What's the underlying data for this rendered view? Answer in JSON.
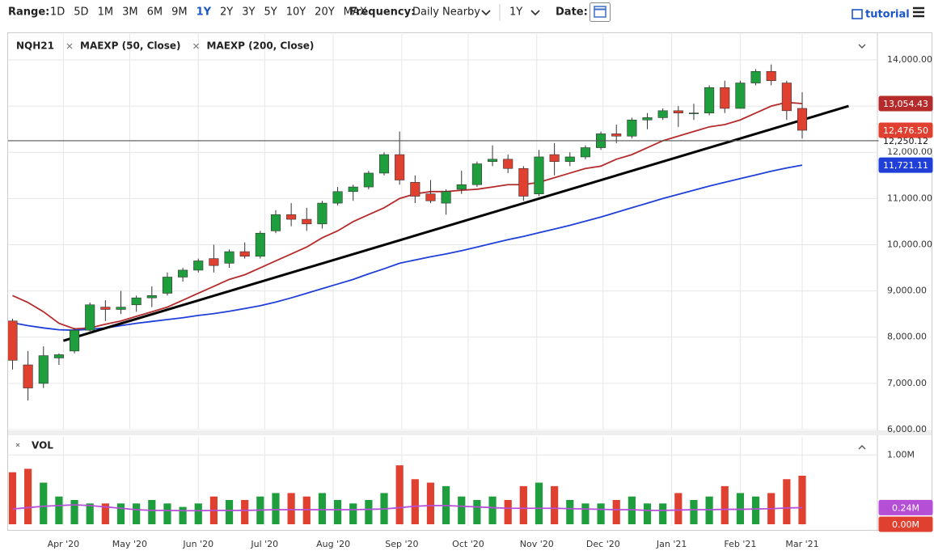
{
  "toolbar": {
    "range_label": "Range:",
    "ranges": [
      "1D",
      "5D",
      "1M",
      "3M",
      "6M",
      "9M",
      "1Y",
      "2Y",
      "3Y",
      "5Y",
      "10Y",
      "20Y",
      "MAX"
    ],
    "active_range": "1Y",
    "frequency_label": "Frequency:",
    "frequency": "Daily Nearby",
    "period": "1Y",
    "date_label": "Date:",
    "tutorial": "tutorial"
  },
  "chart_data": {
    "type": "candlestick",
    "symbol": "NQH21",
    "x": [
      0,
      7,
      14,
      21,
      28,
      35,
      42,
      49,
      56,
      63,
      70,
      77,
      84,
      91,
      98,
      105,
      112,
      119,
      126,
      133,
      140,
      147,
      154,
      161,
      168,
      175,
      182,
      189,
      196,
      203,
      210,
      217,
      224,
      231,
      238,
      245,
      252,
      259,
      266,
      273,
      280,
      287,
      294,
      301,
      308,
      315,
      322,
      329,
      336,
      343,
      350,
      357
    ],
    "open": [
      8350,
      7400,
      7000,
      7550,
      7700,
      8150,
      8650,
      8600,
      8700,
      8850,
      8950,
      9300,
      9450,
      9700,
      9600,
      9850,
      9750,
      10300,
      10650,
      10550,
      10450,
      10900,
      11150,
      11250,
      11550,
      11950,
      11350,
      11100,
      10900,
      11200,
      11300,
      11800,
      11850,
      11650,
      11100,
      11950,
      11800,
      11900,
      12100,
      12400,
      12350,
      12700,
      12750,
      12900,
      12850,
      12850,
      13400,
      12950,
      13500,
      13750,
      13500,
      12950
    ],
    "high": [
      8400,
      7700,
      7800,
      7650,
      8200,
      8750,
      8800,
      9000,
      8900,
      9100,
      9400,
      9500,
      9700,
      10000,
      9900,
      10050,
      10300,
      10750,
      10900,
      10800,
      10950,
      11250,
      11300,
      11600,
      12000,
      12450,
      11500,
      11400,
      11200,
      11600,
      11800,
      12150,
      11950,
      11700,
      12050,
      12200,
      12000,
      12150,
      12450,
      12600,
      12750,
      12850,
      12950,
      13000,
      13050,
      13450,
      13550,
      13550,
      13800,
      13900,
      13550,
      13300
    ],
    "low": [
      7300,
      6630,
      6900,
      7400,
      7650,
      8100,
      8350,
      8500,
      8550,
      8650,
      8900,
      9200,
      9400,
      9400,
      9500,
      9700,
      9700,
      10250,
      10400,
      10300,
      10350,
      10850,
      10950,
      11200,
      11500,
      11300,
      10900,
      10900,
      10650,
      11100,
      11250,
      11700,
      11550,
      10950,
      11050,
      11500,
      11700,
      11850,
      12050,
      12200,
      12300,
      12500,
      12700,
      12550,
      12700,
      12800,
      12850,
      12950,
      13450,
      13450,
      12700,
      12300
    ],
    "close": [
      7500,
      6900,
      7600,
      7620,
      8150,
      8700,
      8600,
      8650,
      8850,
      8900,
      9300,
      9450,
      9650,
      9550,
      9850,
      9750,
      10250,
      10650,
      10550,
      10450,
      10900,
      11150,
      11250,
      11550,
      11950,
      11400,
      11050,
      10950,
      11150,
      11300,
      11750,
      11850,
      11650,
      11050,
      11900,
      11800,
      11900,
      12100,
      12400,
      12350,
      12700,
      12750,
      12900,
      12850,
      12850,
      13400,
      12950,
      13500,
      13750,
      13550,
      12900,
      12476.5
    ],
    "up_color": "#1f9e3e",
    "down_color": "#e0402f",
    "last_price": {
      "value": 12476.5,
      "label": "12,476.50"
    },
    "overlays": [
      {
        "name": "MAEXP (50, Close)",
        "color": "#b52b2b",
        "end_label": {
          "value": 13054.43,
          "label": "13,054.43"
        },
        "values": [
          8900,
          8750,
          8550,
          8300,
          8180,
          8200,
          8280,
          8350,
          8450,
          8550,
          8650,
          8800,
          8950,
          9100,
          9250,
          9350,
          9500,
          9650,
          9800,
          9950,
          10150,
          10300,
          10500,
          10650,
          10800,
          11000,
          11100,
          11150,
          11150,
          11180,
          11200,
          11250,
          11300,
          11300,
          11350,
          11450,
          11550,
          11650,
          11700,
          11850,
          11950,
          12100,
          12250,
          12350,
          12450,
          12550,
          12600,
          12700,
          12850,
          13000,
          13080,
          13054.43
        ]
      },
      {
        "name": "MAEXP (200, Close)",
        "color": "#1f3fd8",
        "end_label": {
          "value": 11721.11,
          "label": "11,721.11"
        },
        "values": [
          8310,
          8250,
          8200,
          8160,
          8150,
          8170,
          8200,
          8250,
          8300,
          8340,
          8380,
          8420,
          8470,
          8510,
          8560,
          8620,
          8680,
          8760,
          8850,
          8950,
          9050,
          9150,
          9250,
          9370,
          9480,
          9600,
          9670,
          9740,
          9800,
          9870,
          9950,
          10030,
          10110,
          10180,
          10260,
          10340,
          10420,
          10510,
          10600,
          10700,
          10800,
          10900,
          11000,
          11090,
          11180,
          11270,
          11350,
          11430,
          11510,
          11590,
          11660,
          11721.11
        ]
      }
    ],
    "trendline": {
      "x": [
        23,
        378
      ],
      "y": [
        7923,
        13000
      ],
      "color": "#000000"
    },
    "hline": {
      "value": 12250.12,
      "label": "12,250.12"
    },
    "xlim": [
      -2,
      391
    ],
    "xticks": [
      {
        "value": 23,
        "label": "Apr '20"
      },
      {
        "value": 53,
        "label": "May '20"
      },
      {
        "value": 84,
        "label": "Jun '20"
      },
      {
        "value": 114,
        "label": "Jul '20"
      },
      {
        "value": 145,
        "label": "Aug '20"
      },
      {
        "value": 176,
        "label": "Sep '20"
      },
      {
        "value": 206,
        "label": "Oct '20"
      },
      {
        "value": 237,
        "label": "Nov '20"
      },
      {
        "value": 267,
        "label": "Dec '20"
      },
      {
        "value": 298,
        "label": "Jan '21"
      },
      {
        "value": 329,
        "label": "Feb '21"
      },
      {
        "value": 357,
        "label": "Mar '21"
      }
    ],
    "ylim": [
      6000,
      14560
    ],
    "yticks": [
      {
        "value": 6000,
        "label": "6,000.00"
      },
      {
        "value": 7000,
        "label": "7,000.00"
      },
      {
        "value": 8000,
        "label": "8,000.00"
      },
      {
        "value": 9000,
        "label": "9,000.00"
      },
      {
        "value": 10000,
        "label": "10,000.00"
      },
      {
        "value": 11000,
        "label": "11,000.00"
      },
      {
        "value": 12000,
        "label": "12,000.00"
      },
      {
        "value": 13000,
        "label": "13,000.00"
      },
      {
        "value": 14000,
        "label": "14,000.00"
      }
    ],
    "grid": true,
    "volume": {
      "name": "VOL",
      "values": [
        750000,
        800000,
        600000,
        400000,
        350000,
        300000,
        300000,
        300000,
        300000,
        350000,
        300000,
        250000,
        300000,
        400000,
        350000,
        350000,
        400000,
        450000,
        450000,
        400000,
        450000,
        350000,
        300000,
        350000,
        450000,
        850000,
        650000,
        600000,
        550000,
        400000,
        350000,
        400000,
        350000,
        550000,
        600000,
        550000,
        350000,
        300000,
        300000,
        350000,
        400000,
        300000,
        300000,
        450000,
        350000,
        400000,
        550000,
        450000,
        400000,
        450000,
        650000,
        700000
      ],
      "average": {
        "color": "#b54fd6",
        "end_label": {
          "value": 240000,
          "label": "0.24M"
        },
        "values": [
          220000,
          240000,
          260000,
          270000,
          280000,
          270000,
          250000,
          230000,
          210000,
          200000,
          200000,
          195000,
          195000,
          200000,
          200000,
          200000,
          205000,
          210000,
          210000,
          210000,
          210000,
          210000,
          210000,
          215000,
          220000,
          240000,
          260000,
          270000,
          270000,
          260000,
          250000,
          240000,
          230000,
          230000,
          230000,
          230000,
          225000,
          220000,
          215000,
          210000,
          210000,
          200000,
          200000,
          205000,
          210000,
          210000,
          215000,
          215000,
          220000,
          225000,
          235000,
          240000
        ]
      },
      "latest": {
        "value": 0,
        "label": "0.00M",
        "color": "#e0402f"
      },
      "ylim": [
        0,
        1260000
      ],
      "yticks": [
        {
          "value": 1000000,
          "label": "1.00M"
        }
      ]
    }
  }
}
